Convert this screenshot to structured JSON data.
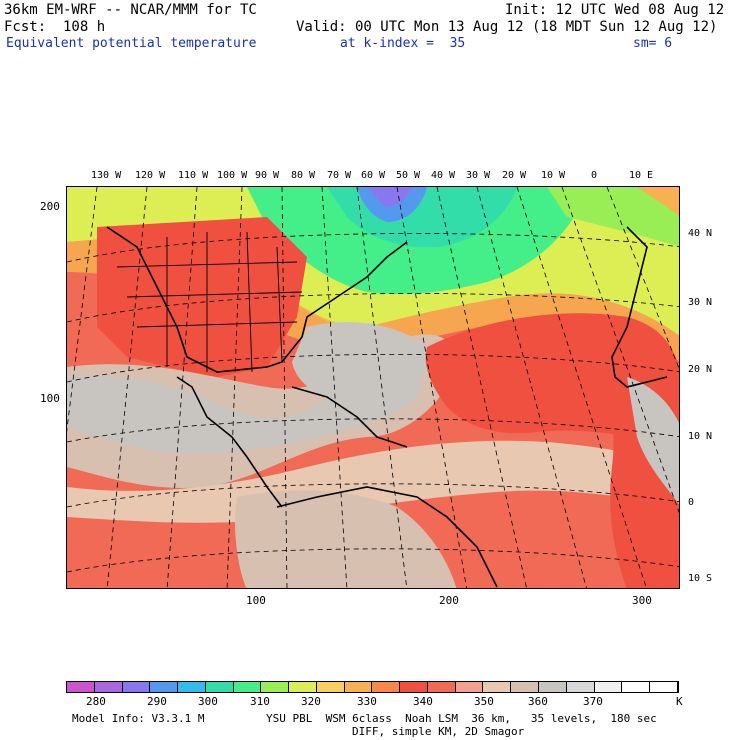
{
  "header": {
    "model_title": "36km EM-WRF -- NCAR/MMM for TC",
    "init": "Init: 12 UTC Wed 08 Aug 12",
    "fcst": "Fcst:  108 h",
    "valid": "Valid: 00 UTC Mon 13 Aug 12 (18 MDT Sun 12 Aug 12)",
    "field": "Equivalent potential temperature",
    "level": "at k-index =  35",
    "smooth": "sm= 6"
  },
  "map": {
    "lon_labels": [
      "130 W",
      "120 W",
      "110 W",
      "100 W",
      "90 W",
      "80 W",
      "70 W",
      "60 W",
      "50 W",
      "40 W",
      "30 W",
      "20 W",
      "10 W",
      "0",
      "10 E"
    ],
    "lat_labels": [
      "40 N",
      "30 N",
      "20 N",
      "10 N",
      "0",
      "10 S"
    ],
    "grid_y_labels": [
      "200",
      "100"
    ],
    "grid_x_labels": [
      "100",
      "200",
      "300"
    ]
  },
  "colorbar": {
    "colors": [
      "#cc55cc",
      "#aa66dd",
      "#8877ee",
      "#5599ee",
      "#33bbee",
      "#33ddaa",
      "#44ee88",
      "#99ee55",
      "#ddee55",
      "#f8d060",
      "#f8b050",
      "#f88848",
      "#f05040",
      "#f06a55",
      "#f4a090",
      "#e8c8b0",
      "#d8c0b0",
      "#c8c4c0",
      "#d8d8d8",
      "#f0f0f0",
      "#ffffff",
      "#ffffff"
    ],
    "labels": [
      "280",
      "290",
      "300",
      "310",
      "320",
      "330",
      "340",
      "350",
      "360",
      "370",
      "K"
    ]
  },
  "footer": {
    "line1_left": "Model Info: V3.3.1 M",
    "line1_right": "YSU PBL  WSM 6class  Noah LSM  36 km,   35 levels,  180 sec",
    "line2": "DIFF, simple KM, 2D Smagor"
  }
}
